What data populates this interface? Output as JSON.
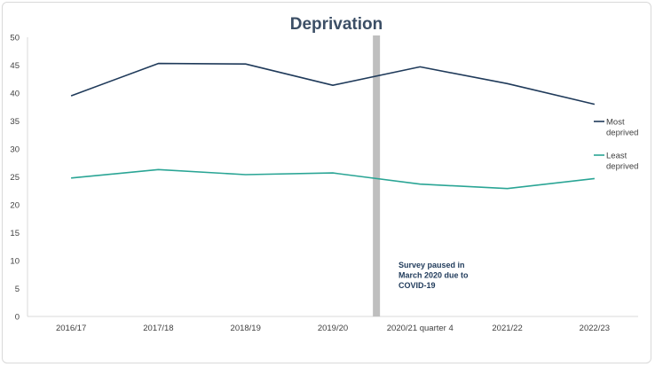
{
  "chart_data": {
    "type": "line",
    "title": "Deprivation",
    "categories": [
      "2016/17",
      "2017/18",
      "2018/19",
      "2019/20",
      "2020/21 quarter 4",
      "2021/22",
      "2022/23"
    ],
    "series": [
      {
        "name": "Most deprived",
        "legend_lines": [
          "Most",
          "deprived"
        ],
        "color": "#1f3a5a",
        "values": [
          39.5,
          45.3,
          45.2,
          41.4,
          44.7,
          41.7,
          38.0
        ]
      },
      {
        "name": "Least deprived",
        "legend_lines": [
          "Least",
          "deprived"
        ],
        "color": "#2aa595",
        "values": [
          24.8,
          26.3,
          25.4,
          25.7,
          23.7,
          22.9,
          24.7
        ]
      }
    ],
    "ylim": [
      0,
      50
    ],
    "yticks": [
      0,
      5,
      10,
      15,
      20,
      25,
      30,
      35,
      40,
      45,
      50
    ],
    "grid": false,
    "legend_position": "right",
    "annotation": {
      "lines": [
        "Survey paused in",
        "March 2020 due to",
        "COVID-19"
      ],
      "bar_color": "#bfbfbf"
    }
  }
}
